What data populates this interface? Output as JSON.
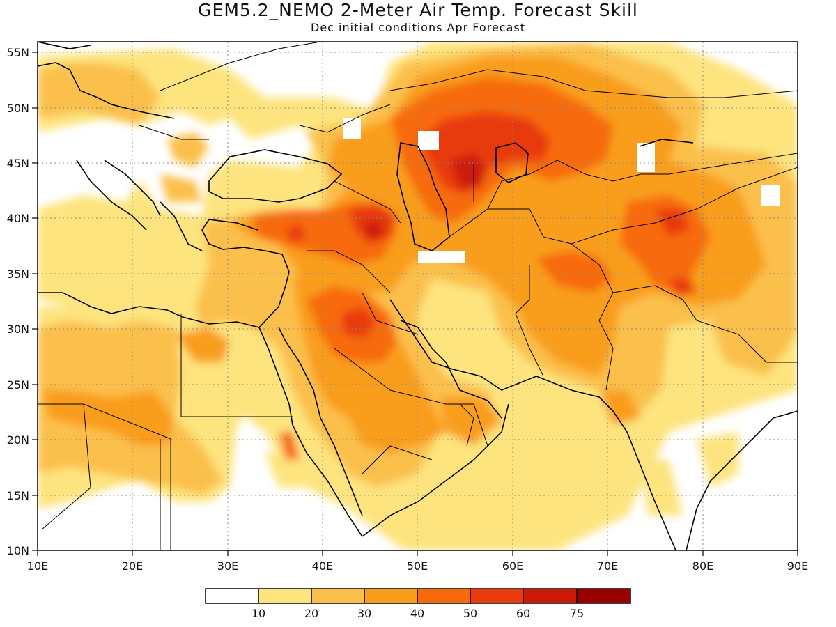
{
  "header": {
    "title": "GEM5.2_NEMO 2-Meter Air Temp. Forecast Skill",
    "subtitle": "Dec initial conditions  Apr Forecast"
  },
  "map": {
    "lon_range": [
      10,
      90
    ],
    "lat_range": [
      10,
      56
    ],
    "lon_ticks": [
      "10E",
      "20E",
      "30E",
      "40E",
      "50E",
      "60E",
      "70E",
      "80E",
      "90E"
    ],
    "lat_ticks": [
      "10N",
      "15N",
      "20N",
      "25N",
      "30N",
      "35N",
      "40N",
      "45N",
      "50N",
      "55N"
    ],
    "gridlines": "dotted",
    "region": "Europe, North Africa, Middle East and South Asia"
  },
  "colorbar": {
    "labels": [
      "10",
      "20",
      "30",
      "40",
      "50",
      "60",
      "75"
    ],
    "colors": [
      "#ffffff",
      "#fde47e",
      "#fbc04c",
      "#f99d1c",
      "#f76a0b",
      "#e83a0d",
      "#cc1a0a",
      "#990000"
    ]
  }
}
